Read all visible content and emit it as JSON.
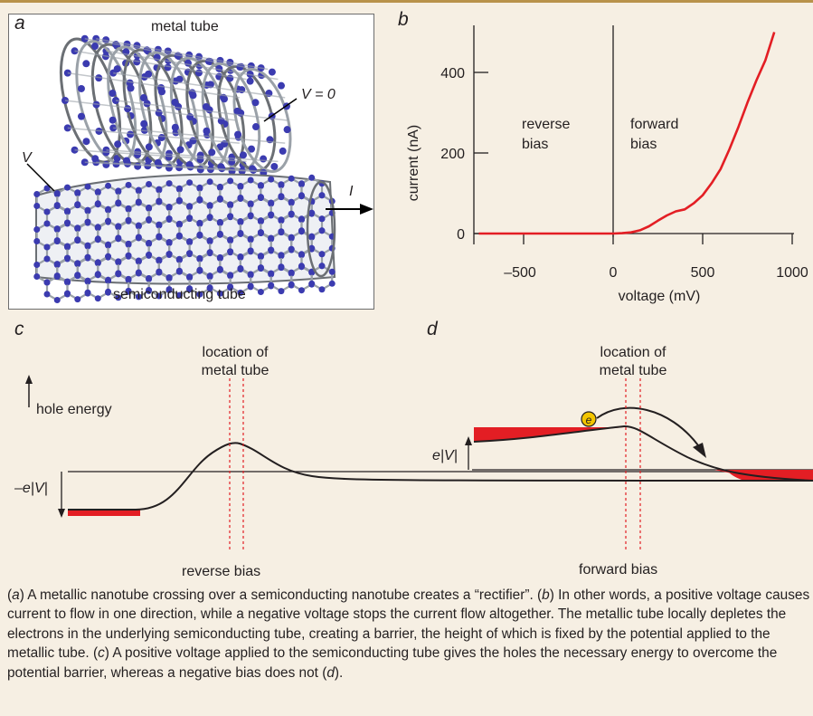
{
  "panel_a": {
    "letter": "a",
    "metal_tube_label": "metal tube",
    "semiconducting_tube_label": "semiconducting tube",
    "v_zero_label": "V = 0",
    "v_label": "V",
    "current_arrow_label": "I"
  },
  "panel_b": {
    "letter": "b",
    "reverse_bias_label": [
      "reverse",
      "bias"
    ],
    "forward_bias_label": [
      "forward",
      "bias"
    ]
  },
  "chart_data": {
    "type": "line",
    "xlabel": "voltage (mV)",
    "ylabel": "current (nA)",
    "xlim": [
      -750,
      1000
    ],
    "ylim": [
      -30,
      560
    ],
    "x_ticks": [
      "–500",
      "0",
      "500",
      "1000"
    ],
    "y_ticks": [
      "0",
      "200",
      "400"
    ],
    "x_tick_values": [
      -500,
      0,
      500,
      1000
    ],
    "y_tick_values": [
      0,
      200,
      400
    ],
    "grid": false,
    "series": [
      {
        "color": "#e31e24",
        "x": [
          -750,
          -400,
          -100,
          0,
          50,
          100,
          150,
          200,
          250,
          300,
          350,
          400,
          450,
          500,
          550,
          600,
          650,
          700,
          750,
          800,
          850,
          900
        ],
        "y": [
          0,
          0,
          0,
          0,
          1,
          3,
          8,
          18,
          32,
          45,
          55,
          60,
          75,
          95,
          125,
          160,
          210,
          265,
          325,
          380,
          430,
          500
        ]
      }
    ]
  },
  "panel_c": {
    "letter": "c",
    "location_label": [
      "location of",
      "metal tube"
    ],
    "hole_energy_label": "hole energy",
    "energy_offset_label": "–e|V|",
    "bias_label": "reverse bias"
  },
  "panel_d": {
    "letter": "d",
    "location_label": [
      "location of",
      "metal tube"
    ],
    "electron_label": "e",
    "energy_offset_label": "e|V|",
    "bias_label": "forward bias"
  },
  "colors": {
    "accent_red": "#e31e24",
    "background": "#f6efe3",
    "tube_atoms": "#3b3bb0",
    "electron": "#f3c500"
  },
  "caption": {
    "p1": "(",
    "a1": "a",
    "p2": ") A metallic nanotube crossing over a semiconducting nanotube creates a “rectifier”. (",
    "b1": "b",
    "p3": ") In other words, a positive voltage causes current to flow in one direction, while a negative voltage stops the current flow altogether. The metallic tube locally depletes the electrons in the underlying semiconducting tube, creating a barrier, the height of which is fixed by the potential applied to the metallic tube. (",
    "c1": "c",
    "p4": ") A positive voltage applied to the semiconducting tube gives the holes the necessary energy to overcome the potential barrier, whereas a negative bias does not (",
    "d1": "d",
    "p5": ")."
  }
}
